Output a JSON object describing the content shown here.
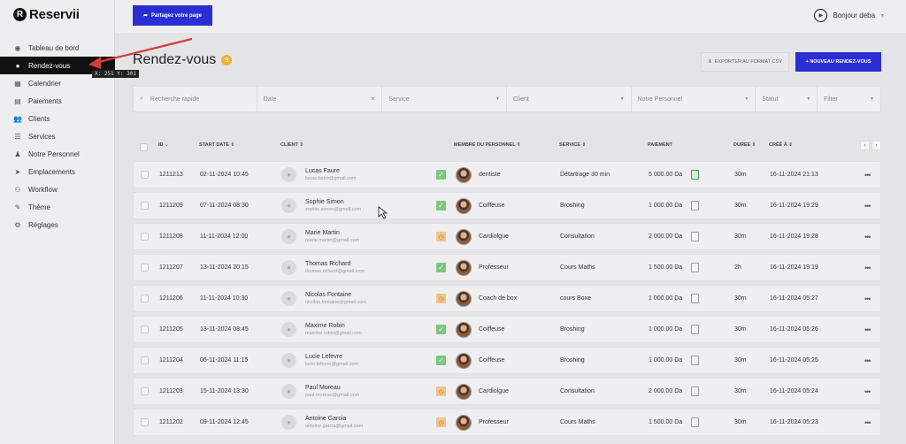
{
  "brand": {
    "logo_letter": "R",
    "name": "Reservii"
  },
  "sidebar": {
    "items": [
      {
        "label": "Tableau de bord",
        "icon": "dashboard-icon",
        "glyph": "◉"
      },
      {
        "label": "Rendez-vous",
        "icon": "clock-icon",
        "glyph": "●"
      },
      {
        "label": "Calendrier",
        "icon": "calendar-icon",
        "glyph": "▦"
      },
      {
        "label": "Paiements",
        "icon": "payments-icon",
        "glyph": "▤"
      },
      {
        "label": "Clients",
        "icon": "users-icon",
        "glyph": "👥"
      },
      {
        "label": "Services",
        "icon": "list-icon",
        "glyph": "☰"
      },
      {
        "label": "Notre Personnel",
        "icon": "person-icon",
        "glyph": "♟"
      },
      {
        "label": "Emplacements",
        "icon": "location-icon",
        "glyph": "➤"
      },
      {
        "label": "Workflow",
        "icon": "workflow-icon",
        "glyph": "⚇"
      },
      {
        "label": "Thème",
        "icon": "brush-icon",
        "glyph": "✎"
      },
      {
        "label": "Réglages",
        "icon": "gear-icon",
        "glyph": "⚙"
      }
    ],
    "tooltip": "X: 251 Y: 301"
  },
  "topbar": {
    "share_label": "Partagez votre page",
    "user_label": "Bonjour deba"
  },
  "page": {
    "title": "Rendez-vous",
    "count": "9",
    "export_label": "EXPORTER AU FORMAT CSV",
    "new_label": "+ NOUVEAU RENDEZ-VOUS"
  },
  "filters": {
    "search": "Recherche rapide",
    "date": "Date",
    "service": "Service",
    "client": "Client",
    "personnel": "Notre Personnel",
    "statut": "Statut",
    "filter": "Filter"
  },
  "table": {
    "headers": {
      "id": "ID",
      "start": "START DATE",
      "client": "CLIENT",
      "staff": "MEMBRE DU PERSONNEL",
      "service": "SERVICE",
      "payment": "PAIEMENT",
      "duration": "DUREE",
      "created": "CRÉÉ À"
    },
    "rows": [
      {
        "id": "1211213",
        "start": "02-11-2024 10:45",
        "name": "Lucas Faure",
        "email": "lucas.faure@gmail.com",
        "status": "ok",
        "staff": "dentiste",
        "service": "Détartrage 30 min",
        "payment": "5 000.00 Da",
        "paid": true,
        "duration": "30m",
        "created": "16-11-2024 21:13"
      },
      {
        "id": "1211209",
        "start": "07-11-2024 08:30",
        "name": "Sophie Simon",
        "email": "sophie.simon@gmail.com",
        "status": "ok",
        "staff": "Coiffeuse",
        "service": "Broshing",
        "payment": "1 000.00 Da",
        "paid": false,
        "duration": "30m",
        "created": "16-11-2024 19:29"
      },
      {
        "id": "1211208",
        "start": "11-11-2024 12:00",
        "name": "Marie Martin",
        "email": "marie.martin@gmail.com",
        "status": "wait",
        "staff": "Cardiolgue",
        "service": "Consultation",
        "payment": "2 000.00 Da",
        "paid": false,
        "duration": "30m",
        "created": "16-11-2024 19:28"
      },
      {
        "id": "1211207",
        "start": "13-11-2024 20:15",
        "name": "Thomas Richard",
        "email": "thomas.richard@gmail.com",
        "status": "ok",
        "staff": "Professeur",
        "service": "Cours Maths",
        "payment": "1 500.00 Da",
        "paid": false,
        "duration": "2h",
        "created": "16-11-2024 19:19"
      },
      {
        "id": "1211206",
        "start": "11-11-2024 10:30",
        "name": "Nicolas Fontaine",
        "email": "nicolas.fontaine@gmail.com",
        "status": "wait",
        "staff": "Coach de box",
        "service": "cours Boxe",
        "payment": "1 000.00 Da",
        "paid": false,
        "duration": "30m",
        "created": "16-11-2024 05:27"
      },
      {
        "id": "1211205",
        "start": "13-11-2024 08:45",
        "name": "Maxime Robin",
        "email": "maxime.robin@gmail.com",
        "status": "ok",
        "staff": "Coiffeuse",
        "service": "Broshing",
        "payment": "1 000.00 Da",
        "paid": false,
        "duration": "30m",
        "created": "16-11-2024 05:26"
      },
      {
        "id": "1211204",
        "start": "06-11-2024 11:15",
        "name": "Lucie Lefevre",
        "email": "lucie.lefevre@gmail.com",
        "status": "ok",
        "staff": "Coiffeuse",
        "service": "Broshing",
        "payment": "1 000.00 Da",
        "paid": false,
        "duration": "30m",
        "created": "16-11-2024 05:25"
      },
      {
        "id": "1211203",
        "start": "15-11-2024 13:30",
        "name": "Paul Moreau",
        "email": "paul.moreau@gmail.com",
        "status": "wait",
        "staff": "Cardiolgue",
        "service": "Consultation",
        "payment": "2 000.00 Da",
        "paid": false,
        "duration": "30m",
        "created": "16-11-2024 05:24"
      },
      {
        "id": "1211202",
        "start": "09-11-2024 12:45",
        "name": "Antoine Garcia",
        "email": "antoine.garcia@gmail.com",
        "status": "wait",
        "staff": "Professeur",
        "service": "Cours Maths",
        "payment": "1 500.00 Da",
        "paid": false,
        "duration": "30m",
        "created": "16-11-2024 05:23"
      }
    ]
  },
  "colors": {
    "accent": "#2a2fd3",
    "badge": "#f0b13a",
    "ok": "#7cc77d",
    "wait": "#f1c48a",
    "pointer": "#d83a3a"
  }
}
